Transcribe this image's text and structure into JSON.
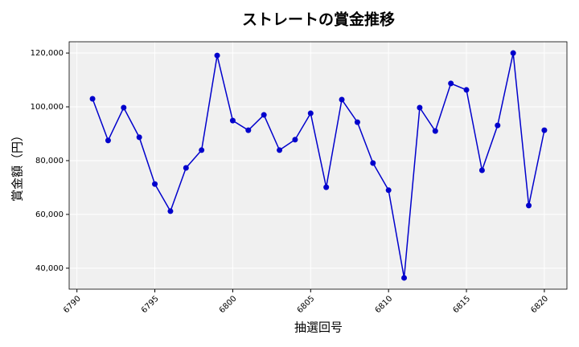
{
  "chart_data": {
    "type": "line",
    "title": "ストレートの賞金推移",
    "xlabel": "抽選回号",
    "ylabel": "賞金額（円）",
    "x": [
      6791,
      6792,
      6793,
      6794,
      6795,
      6796,
      6797,
      6798,
      6799,
      6800,
      6801,
      6802,
      6803,
      6804,
      6805,
      6806,
      6807,
      6808,
      6809,
      6810,
      6811,
      6812,
      6813,
      6814,
      6815,
      6816,
      6817,
      6818,
      6819,
      6820
    ],
    "values": [
      103000,
      87500,
      99700,
      88700,
      71300,
      61200,
      77300,
      83900,
      119100,
      94900,
      91300,
      97000,
      83900,
      87800,
      97600,
      70100,
      102700,
      94300,
      79100,
      69000,
      36400,
      99700,
      91000,
      108700,
      106300,
      76400,
      93100,
      120000,
      63300,
      91300
    ],
    "color": "#0000cc",
    "xlim": [
      6789.5,
      6821.45
    ],
    "xticks": [
      6790,
      6795,
      6800,
      6805,
      6810,
      6815,
      6820
    ],
    "ylim": [
      32200,
      124200
    ],
    "yticks": [
      {
        "value": 40000,
        "label": "40,000"
      },
      {
        "value": 60000,
        "label": "60,000"
      },
      {
        "value": 80000,
        "label": "80,000"
      },
      {
        "value": 100000,
        "label": "100,000"
      },
      {
        "value": 120000,
        "label": "120,000"
      }
    ],
    "grid": true
  }
}
